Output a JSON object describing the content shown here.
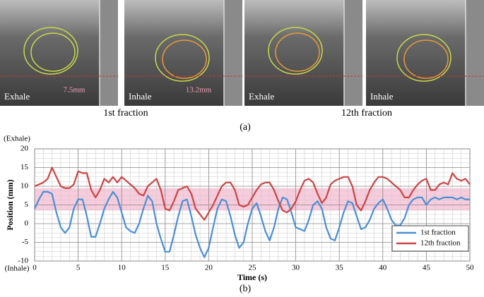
{
  "panel_a": {
    "images": [
      {
        "label": "Exhale",
        "measure": "7.5mm"
      },
      {
        "label": "Inhale",
        "measure": "13.2mm"
      },
      {
        "label": "Exhale"
      },
      {
        "label": "Inhale"
      }
    ],
    "captions": [
      "1st fraction",
      "12th fraction"
    ],
    "tag": "(a)"
  },
  "panel_b_tag": "(b)",
  "chart_data": {
    "type": "line",
    "xlabel": "Time (s)",
    "ylabel": "Position (mm)",
    "top_annotation": "(Exhale)",
    "bottom_annotation": "(Inhale)",
    "xlim": [
      0,
      50
    ],
    "xticks": [
      0,
      5,
      10,
      15,
      20,
      25,
      30,
      35,
      40,
      45,
      50
    ],
    "ylim": [
      -10,
      20
    ],
    "yticks": [
      -10,
      -5,
      0,
      5,
      10,
      15,
      20
    ],
    "grid": true,
    "legend": "lower right",
    "band": {
      "range": [
        3.5,
        9.5
      ],
      "color": "#f5b5cf"
    },
    "x": [
      0,
      0.5,
      1,
      1.5,
      2,
      2.5,
      3,
      3.5,
      4,
      4.5,
      5,
      5.5,
      6,
      6.5,
      7,
      7.5,
      8,
      8.5,
      9,
      9.5,
      10,
      10.5,
      11,
      11.5,
      12,
      12.5,
      13,
      13.5,
      14,
      14.5,
      15,
      15.5,
      16,
      16.5,
      17,
      17.5,
      18,
      18.5,
      19,
      19.5,
      20,
      20.5,
      21,
      21.5,
      22,
      22.5,
      23,
      23.5,
      24,
      24.5,
      25,
      25.5,
      26,
      26.5,
      27,
      27.5,
      28,
      28.5,
      29,
      29.5,
      30,
      30.5,
      31,
      31.5,
      32,
      32.5,
      33,
      33.5,
      34,
      34.5,
      35,
      35.5,
      36,
      36.5,
      37,
      37.5,
      38,
      38.5,
      39,
      39.5,
      40,
      40.5,
      41,
      41.5,
      42,
      42.5,
      43,
      43.5,
      44,
      44.5,
      45,
      45.5,
      46,
      46.5,
      47,
      47.5,
      48,
      48.5,
      49,
      49.5,
      50
    ],
    "series": [
      {
        "name": "1st fraction",
        "color": "#4a8fd6",
        "values": [
          4,
          6.5,
          8.5,
          8.5,
          8,
          3,
          -1,
          -2.5,
          -1,
          4,
          6.5,
          6.5,
          2,
          -3.5,
          -3.5,
          0,
          4,
          6.5,
          8.5,
          7,
          3,
          -1,
          -2,
          -2.5,
          0,
          4,
          7.5,
          6,
          0,
          -4,
          -7.5,
          -7.5,
          -3,
          2,
          6,
          6.5,
          2,
          -3,
          -6.5,
          -9,
          -6.5,
          -1,
          4,
          6.5,
          6,
          2,
          -3,
          -6.5,
          -5,
          0,
          4,
          5.5,
          2,
          -2,
          -4.5,
          -1,
          4,
          7,
          6.5,
          3,
          -1,
          -1.5,
          -2,
          1,
          5,
          6,
          4,
          -1,
          -4,
          -4.5,
          -1,
          3,
          6,
          5.5,
          2,
          -1.5,
          -1,
          1,
          4,
          5.5,
          6.5,
          4,
          1,
          -0.5,
          -0.5,
          1.5,
          5,
          6.5,
          7,
          7,
          5,
          6.5,
          7,
          6.5,
          7,
          7,
          7,
          6.5,
          7,
          6.5,
          6.5
        ]
      },
      {
        "name": "12th fraction",
        "color": "#cc4444",
        "values": [
          10,
          10.5,
          11,
          12,
          15,
          12.5,
          10,
          9.5,
          9.5,
          10.5,
          14,
          13.5,
          13.5,
          9,
          7,
          9,
          12,
          11,
          12.5,
          11,
          12.5,
          11.5,
          10.5,
          9.5,
          8,
          7.5,
          10,
          11,
          12,
          9,
          4,
          3.5,
          6,
          9,
          9.5,
          10,
          8,
          4,
          2.5,
          1,
          3,
          5,
          7.5,
          10,
          11,
          11,
          9,
          5,
          4.5,
          5,
          7,
          9,
          10.5,
          11,
          11,
          9,
          6,
          3.5,
          3,
          4,
          6,
          9,
          11.5,
          12,
          11,
          8,
          5.5,
          7,
          10.5,
          11.5,
          12,
          12.5,
          12.5,
          10,
          5,
          3.5,
          6,
          9,
          11,
          12.5,
          12.5,
          12,
          11,
          10,
          9,
          7,
          7,
          9,
          10.5,
          11.5,
          12,
          9,
          9,
          10.5,
          11,
          10.5,
          13.5,
          12,
          11.5,
          12,
          10.5
        ]
      }
    ]
  }
}
